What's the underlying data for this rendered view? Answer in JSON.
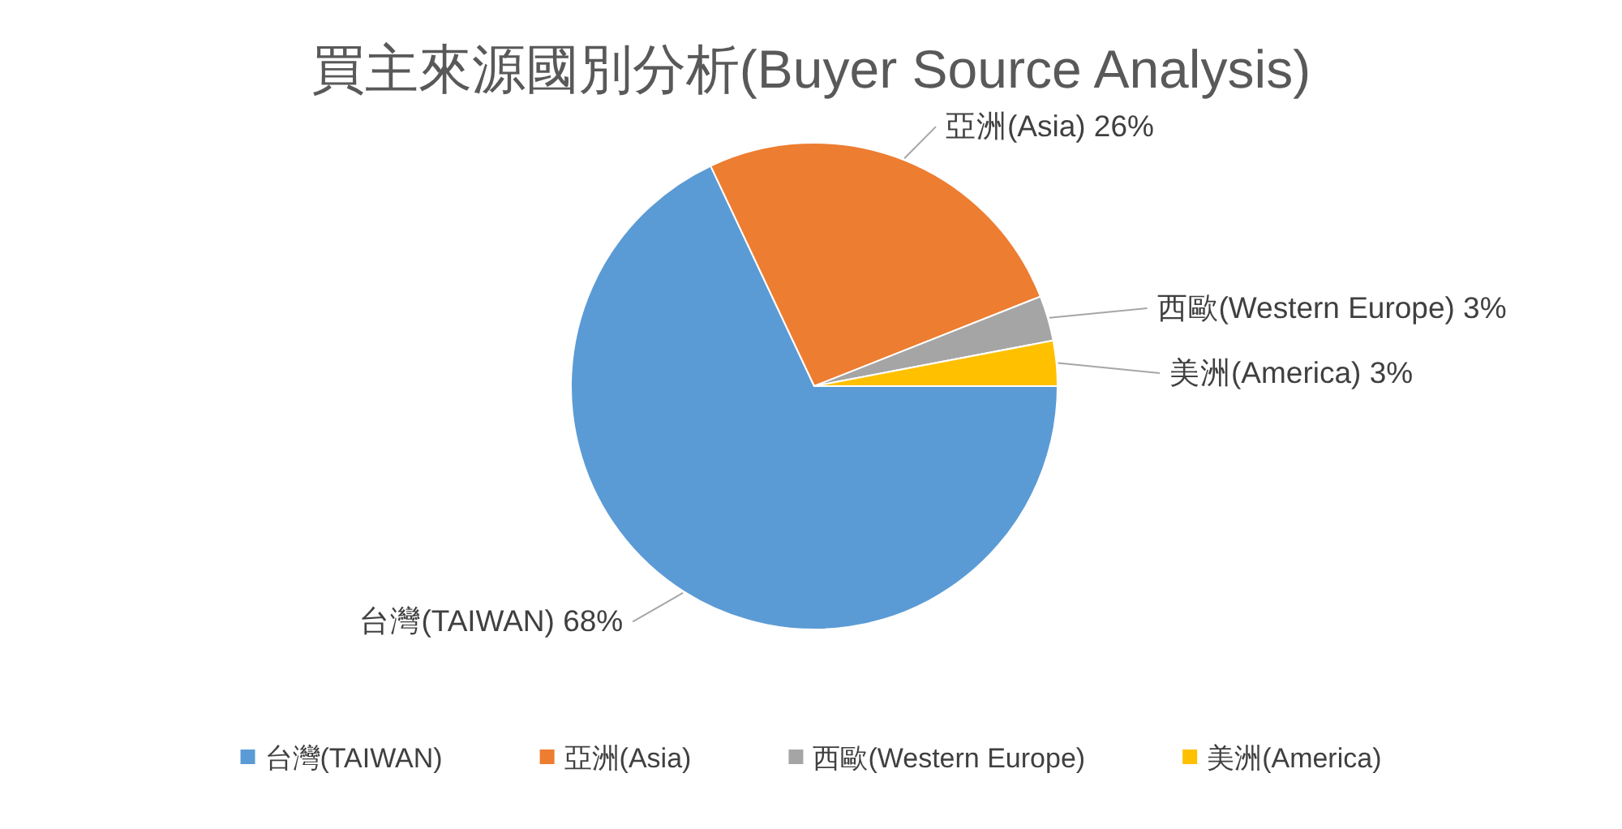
{
  "chart_data": {
    "type": "pie",
    "title": "買主來源國別分析(Buyer Source Analysis)",
    "categories": [
      "台灣(TAIWAN)",
      "亞洲(Asia)",
      "西歐(Western Europe)",
      "美洲(America)"
    ],
    "values": [
      68,
      26,
      3,
      3
    ],
    "colors": [
      "#5b9bd5",
      "#ed7d31",
      "#a5a5a5",
      "#ffc000"
    ],
    "value_labels": [
      "68%",
      "26%",
      "3%",
      "3%"
    ],
    "legend": "bottom"
  }
}
